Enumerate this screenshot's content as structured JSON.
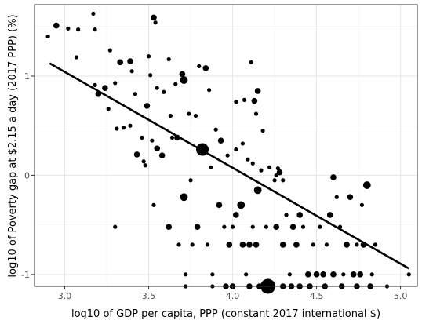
{
  "chart_data": {
    "type": "scatter",
    "title": "",
    "xlabel": "log10 of GDP per capita, PPP (constant 2017 international $)",
    "ylabel": "log10 of Poverty gap at $2.15 a day (2017 PPP) (%)",
    "xlim": [
      2.82,
      5.1
    ],
    "ylim": [
      -1.12,
      1.72
    ],
    "x_ticks": [
      3.0,
      3.5,
      4.0,
      4.5,
      5.0
    ],
    "x_tick_labels": [
      "3.0",
      "3.5",
      "4.0",
      "4.5",
      "5.0"
    ],
    "y_ticks": [
      -1,
      0,
      1
    ],
    "y_tick_labels": [
      "-1",
      "0",
      "1"
    ],
    "grid": true,
    "legend": "none",
    "trend_line": {
      "x": [
        2.91,
        5.05
      ],
      "y": [
        1.13,
        -0.94
      ]
    },
    "point_color": "#000000",
    "line_color": "#000000",
    "points": [
      {
        "x": 2.9,
        "y": 1.4,
        "s": 1
      },
      {
        "x": 2.95,
        "y": 1.51,
        "s": 2
      },
      {
        "x": 3.02,
        "y": 1.48,
        "s": 1
      },
      {
        "x": 3.08,
        "y": 1.47,
        "s": 1
      },
      {
        "x": 3.17,
        "y": 1.63,
        "s": 1
      },
      {
        "x": 3.18,
        "y": 1.47,
        "s": 1
      },
      {
        "x": 3.07,
        "y": 1.19,
        "s": 1
      },
      {
        "x": 3.27,
        "y": 1.26,
        "s": 1
      },
      {
        "x": 3.33,
        "y": 1.14,
        "s": 2
      },
      {
        "x": 3.39,
        "y": 1.15,
        "s": 2
      },
      {
        "x": 3.4,
        "y": 1.05,
        "s": 1
      },
      {
        "x": 3.18,
        "y": 0.91,
        "s": 1
      },
      {
        "x": 3.2,
        "y": 0.82,
        "s": 2
      },
      {
        "x": 3.24,
        "y": 0.88,
        "s": 2
      },
      {
        "x": 3.26,
        "y": 0.67,
        "s": 1
      },
      {
        "x": 3.3,
        "y": 0.93,
        "s": 1
      },
      {
        "x": 3.31,
        "y": 0.47,
        "s": 1
      },
      {
        "x": 3.35,
        "y": 0.48,
        "s": 1
      },
      {
        "x": 3.39,
        "y": 0.5,
        "s": 1
      },
      {
        "x": 3.43,
        "y": 0.21,
        "s": 2
      },
      {
        "x": 3.47,
        "y": 0.14,
        "s": 1
      },
      {
        "x": 3.49,
        "y": 0.7,
        "s": 2
      },
      {
        "x": 3.5,
        "y": 1.2,
        "s": 1
      },
      {
        "x": 3.51,
        "y": 1.01,
        "s": 1
      },
      {
        "x": 3.53,
        "y": 1.59,
        "s": 2
      },
      {
        "x": 3.54,
        "y": 1.54,
        "s": 1
      },
      {
        "x": 3.55,
        "y": 0.88,
        "s": 1
      },
      {
        "x": 3.55,
        "y": 0.27,
        "s": 2
      },
      {
        "x": 3.59,
        "y": 0.84,
        "s": 1
      },
      {
        "x": 3.62,
        "y": 1.17,
        "s": 1
      },
      {
        "x": 3.63,
        "y": 0.6,
        "s": 1
      },
      {
        "x": 3.66,
        "y": 0.92,
        "s": 1
      },
      {
        "x": 3.67,
        "y": 0.38,
        "s": 2
      },
      {
        "x": 3.7,
        "y": 1.02,
        "s": 2
      },
      {
        "x": 3.71,
        "y": 0.96,
        "s": 3
      },
      {
        "x": 3.71,
        "y": -0.22,
        "s": 3
      },
      {
        "x": 3.72,
        "y": -1.0,
        "s": 1
      },
      {
        "x": 3.74,
        "y": 0.62,
        "s": 1
      },
      {
        "x": 3.75,
        "y": -0.05,
        "s": 1
      },
      {
        "x": 3.8,
        "y": 1.1,
        "s": 1
      },
      {
        "x": 3.82,
        "y": 0.26,
        "s": 5
      },
      {
        "x": 3.84,
        "y": 1.08,
        "s": 2
      },
      {
        "x": 3.86,
        "y": 0.86,
        "s": 1
      },
      {
        "x": 3.87,
        "y": 0.08,
        "s": 1
      },
      {
        "x": 3.9,
        "y": 0.46,
        "s": 1
      },
      {
        "x": 3.62,
        "y": -0.52,
        "s": 2
      },
      {
        "x": 3.68,
        "y": -0.7,
        "s": 1
      },
      {
        "x": 3.76,
        "y": -0.7,
        "s": 1
      },
      {
        "x": 3.79,
        "y": -0.52,
        "s": 2
      },
      {
        "x": 3.85,
        "y": -0.7,
        "s": 1
      },
      {
        "x": 3.88,
        "y": -1.0,
        "s": 1
      },
      {
        "x": 3.92,
        "y": -0.3,
        "s": 2
      },
      {
        "x": 3.95,
        "y": -0.52,
        "s": 1
      },
      {
        "x": 3.98,
        "y": -0.7,
        "s": 2
      },
      {
        "x": 4.0,
        "y": -0.52,
        "s": 1
      },
      {
        "x": 4.02,
        "y": -0.4,
        "s": 2
      },
      {
        "x": 4.05,
        "y": -0.3,
        "s": 3
      },
      {
        "x": 4.06,
        "y": -0.7,
        "s": 2
      },
      {
        "x": 4.08,
        "y": -1.0,
        "s": 1
      },
      {
        "x": 4.1,
        "y": -0.7,
        "s": 2
      },
      {
        "x": 4.12,
        "y": -0.52,
        "s": 1
      },
      {
        "x": 4.14,
        "y": -0.7,
        "s": 2
      },
      {
        "x": 4.15,
        "y": -0.15,
        "s": 3
      },
      {
        "x": 4.17,
        "y": 0.05,
        "s": 1
      },
      {
        "x": 4.2,
        "y": -0.52,
        "s": 1
      },
      {
        "x": 4.21,
        "y": -1.12,
        "s": 6
      },
      {
        "x": 4.02,
        "y": 0.26,
        "s": 1
      },
      {
        "x": 4.06,
        "y": 0.32,
        "s": 1
      },
      {
        "x": 4.02,
        "y": 0.74,
        "s": 1
      },
      {
        "x": 4.07,
        "y": 0.76,
        "s": 1
      },
      {
        "x": 4.11,
        "y": 1.14,
        "s": 1
      },
      {
        "x": 4.13,
        "y": 0.75,
        "s": 2
      },
      {
        "x": 4.14,
        "y": 0.62,
        "s": 1
      },
      {
        "x": 4.15,
        "y": 0.85,
        "s": 2
      },
      {
        "x": 4.18,
        "y": 0.45,
        "s": 1
      },
      {
        "x": 4.22,
        "y": 0.08,
        "s": 1
      },
      {
        "x": 4.25,
        "y": -0.05,
        "s": 1
      },
      {
        "x": 4.27,
        "y": 0.07,
        "s": 1
      },
      {
        "x": 4.28,
        "y": 0.03,
        "s": 2
      },
      {
        "x": 4.3,
        "y": -0.05,
        "s": 1
      },
      {
        "x": 4.26,
        "y": -0.52,
        "s": 2
      },
      {
        "x": 4.3,
        "y": -0.7,
        "s": 2
      },
      {
        "x": 4.32,
        "y": -0.4,
        "s": 1
      },
      {
        "x": 4.34,
        "y": -1.0,
        "s": 1
      },
      {
        "x": 4.36,
        "y": -0.52,
        "s": 2
      },
      {
        "x": 4.38,
        "y": -0.7,
        "s": 2
      },
      {
        "x": 4.4,
        "y": -0.4,
        "s": 2
      },
      {
        "x": 4.42,
        "y": -0.52,
        "s": 1
      },
      {
        "x": 4.45,
        "y": -1.0,
        "s": 2
      },
      {
        "x": 4.48,
        "y": -0.7,
        "s": 1
      },
      {
        "x": 4.5,
        "y": -1.0,
        "s": 2
      },
      {
        "x": 4.52,
        "y": -0.52,
        "s": 1
      },
      {
        "x": 4.54,
        "y": -1.0,
        "s": 2
      },
      {
        "x": 4.56,
        "y": -0.7,
        "s": 1
      },
      {
        "x": 4.58,
        "y": -0.4,
        "s": 2
      },
      {
        "x": 4.6,
        "y": -1.0,
        "s": 2
      },
      {
        "x": 4.62,
        "y": -0.22,
        "s": 1
      },
      {
        "x": 4.64,
        "y": -0.52,
        "s": 1
      },
      {
        "x": 4.66,
        "y": -1.0,
        "s": 1
      },
      {
        "x": 4.68,
        "y": -0.7,
        "s": 2
      },
      {
        "x": 4.7,
        "y": -0.22,
        "s": 2
      },
      {
        "x": 4.72,
        "y": -1.0,
        "s": 2
      },
      {
        "x": 4.74,
        "y": -0.7,
        "s": 1
      },
      {
        "x": 4.76,
        "y": -1.0,
        "s": 2
      },
      {
        "x": 4.77,
        "y": -0.3,
        "s": 1
      },
      {
        "x": 4.78,
        "y": -0.7,
        "s": 2
      },
      {
        "x": 4.8,
        "y": -0.1,
        "s": 3
      },
      {
        "x": 4.83,
        "y": -1.0,
        "s": 1
      },
      {
        "x": 4.85,
        "y": -0.7,
        "s": 1
      },
      {
        "x": 4.6,
        "y": -0.02,
        "s": 2
      },
      {
        "x": 4.35,
        "y": -1.12,
        "s": 2
      },
      {
        "x": 4.4,
        "y": -1.12,
        "s": 2
      },
      {
        "x": 4.46,
        "y": -1.12,
        "s": 2
      },
      {
        "x": 4.3,
        "y": -1.12,
        "s": 2
      },
      {
        "x": 4.0,
        "y": -1.12,
        "s": 2
      },
      {
        "x": 3.96,
        "y": -1.12,
        "s": 2
      },
      {
        "x": 3.88,
        "y": -1.12,
        "s": 1
      },
      {
        "x": 3.72,
        "y": -1.12,
        "s": 1
      },
      {
        "x": 4.1,
        "y": -1.12,
        "s": 2
      },
      {
        "x": 4.16,
        "y": -1.12,
        "s": 2
      },
      {
        "x": 4.55,
        "y": -1.12,
        "s": 2
      },
      {
        "x": 4.65,
        "y": -1.12,
        "s": 2
      },
      {
        "x": 4.74,
        "y": -1.12,
        "s": 2
      },
      {
        "x": 4.82,
        "y": -1.12,
        "s": 2
      },
      {
        "x": 4.92,
        "y": -1.12,
        "s": 1
      },
      {
        "x": 5.05,
        "y": -1.0,
        "s": 1
      },
      {
        "x": 3.3,
        "y": -0.52,
        "s": 1
      },
      {
        "x": 3.53,
        "y": -0.3,
        "s": 1
      },
      {
        "x": 3.48,
        "y": 0.1,
        "s": 1
      },
      {
        "x": 3.52,
        "y": 0.35,
        "s": 1
      },
      {
        "x": 3.46,
        "y": 0.38,
        "s": 1
      },
      {
        "x": 3.42,
        "y": 0.82,
        "s": 1
      },
      {
        "x": 3.58,
        "y": 0.2,
        "s": 2
      },
      {
        "x": 3.64,
        "y": 0.38,
        "s": 1
      },
      {
        "x": 3.78,
        "y": 0.6,
        "s": 1
      },
      {
        "x": 3.97,
        "y": 0.2,
        "s": 1
      },
      {
        "x": 3.93,
        "y": 0.35,
        "s": 2
      },
      {
        "x": 4.09,
        "y": 0.16,
        "s": 1
      },
      {
        "x": 4.26,
        "y": 0.0,
        "s": 1
      },
      {
        "x": 4.12,
        "y": 0.12,
        "s": 1
      }
    ]
  }
}
